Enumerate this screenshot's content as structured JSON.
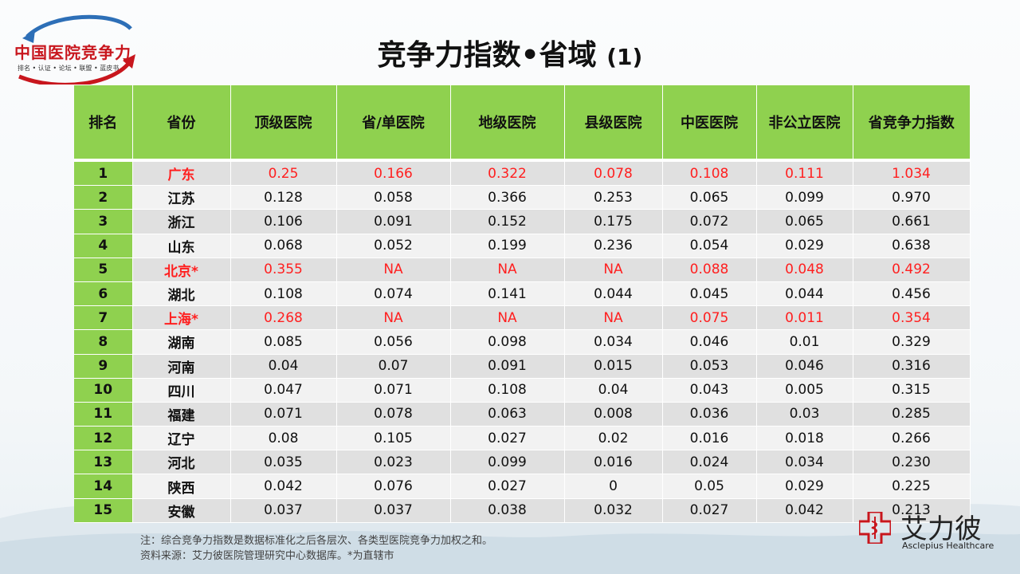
{
  "logo": {
    "name": "中国医院竞争力",
    "tagline": "排名 • 认证 • 论坛 • 联盟 • 蓝皮书"
  },
  "title": {
    "main": "竞争力指数•省域",
    "suffix": "(1)"
  },
  "table": {
    "headers": [
      "排名",
      "省份",
      "顶级医院",
      "省/单医院",
      "地级医院",
      "县级医院",
      "中医医院",
      "非公立医院",
      "省竞争力指数"
    ],
    "rows": [
      {
        "rank": "1",
        "province": "广东",
        "c1": "0.25",
        "c2": "0.166",
        "c3": "0.322",
        "c4": "0.078",
        "c5": "0.108",
        "c6": "0.111",
        "c7": "1.034",
        "highlight": true
      },
      {
        "rank": "2",
        "province": "江苏",
        "c1": "0.128",
        "c2": "0.058",
        "c3": "0.366",
        "c4": "0.253",
        "c5": "0.065",
        "c6": "0.099",
        "c7": "0.970",
        "highlight": false
      },
      {
        "rank": "3",
        "province": "浙江",
        "c1": "0.106",
        "c2": "0.091",
        "c3": "0.152",
        "c4": "0.175",
        "c5": "0.072",
        "c6": "0.065",
        "c7": "0.661",
        "highlight": false
      },
      {
        "rank": "4",
        "province": "山东",
        "c1": "0.068",
        "c2": "0.052",
        "c3": "0.199",
        "c4": "0.236",
        "c5": "0.054",
        "c6": "0.029",
        "c7": "0.638",
        "highlight": false
      },
      {
        "rank": "5",
        "province": "北京*",
        "c1": "0.355",
        "c2": "NA",
        "c3": "NA",
        "c4": "NA",
        "c5": "0.088",
        "c6": "0.048",
        "c7": "0.492",
        "highlight": true
      },
      {
        "rank": "6",
        "province": "湖北",
        "c1": "0.108",
        "c2": "0.074",
        "c3": "0.141",
        "c4": "0.044",
        "c5": "0.045",
        "c6": "0.044",
        "c7": "0.456",
        "highlight": false
      },
      {
        "rank": "7",
        "province": "上海*",
        "c1": "0.268",
        "c2": "NA",
        "c3": "NA",
        "c4": "NA",
        "c5": "0.075",
        "c6": "0.011",
        "c7": "0.354",
        "highlight": true
      },
      {
        "rank": "8",
        "province": "湖南",
        "c1": "0.085",
        "c2": "0.056",
        "c3": "0.098",
        "c4": "0.034",
        "c5": "0.046",
        "c6": "0.01",
        "c7": "0.329",
        "highlight": false
      },
      {
        "rank": "9",
        "province": "河南",
        "c1": "0.04",
        "c2": "0.07",
        "c3": "0.091",
        "c4": "0.015",
        "c5": "0.053",
        "c6": "0.046",
        "c7": "0.316",
        "highlight": false
      },
      {
        "rank": "10",
        "province": "四川",
        "c1": "0.047",
        "c2": "0.071",
        "c3": "0.108",
        "c4": "0.04",
        "c5": "0.043",
        "c6": "0.005",
        "c7": "0.315",
        "highlight": false
      },
      {
        "rank": "11",
        "province": "福建",
        "c1": "0.071",
        "c2": "0.078",
        "c3": "0.063",
        "c4": "0.008",
        "c5": "0.036",
        "c6": "0.03",
        "c7": "0.285",
        "highlight": false
      },
      {
        "rank": "12",
        "province": "辽宁",
        "c1": "0.08",
        "c2": "0.105",
        "c3": "0.027",
        "c4": "0.02",
        "c5": "0.016",
        "c6": "0.018",
        "c7": "0.266",
        "highlight": false
      },
      {
        "rank": "13",
        "province": "河北",
        "c1": "0.035",
        "c2": "0.023",
        "c3": "0.099",
        "c4": "0.016",
        "c5": "0.024",
        "c6": "0.034",
        "c7": "0.230",
        "highlight": false
      },
      {
        "rank": "14",
        "province": "陕西",
        "c1": "0.042",
        "c2": "0.076",
        "c3": "0.027",
        "c4": "0",
        "c5": "0.05",
        "c6": "0.029",
        "c7": "0.225",
        "highlight": false
      },
      {
        "rank": "15",
        "province": "安徽",
        "c1": "0.037",
        "c2": "0.037",
        "c3": "0.038",
        "c4": "0.032",
        "c5": "0.027",
        "c6": "0.042",
        "c7": "0.213",
        "highlight": false
      }
    ]
  },
  "notes": {
    "line1": "注：综合竞争力指数是数据标准化之后各层次、各类型医院竞争力加权之和。",
    "line2": "资料来源：艾力彼医院管理研究中心数据库。*为直辖市"
  },
  "brand": {
    "cn": "艾力彼",
    "en": "Asclepius Healthcare"
  },
  "colors": {
    "header_green": "#8fd14f",
    "highlight_red": "#ff1f1f",
    "row_gray_dark": "#e0e0e0",
    "row_gray_light": "#f2f2f2"
  }
}
